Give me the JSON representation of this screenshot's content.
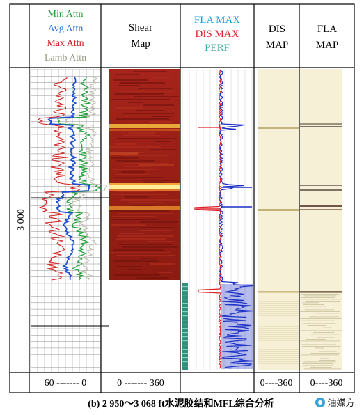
{
  "chart_data": {
    "type": "well-log composite",
    "depth_label": "3 000",
    "tracks": [
      {
        "id": "attenuation",
        "legend": [
          {
            "name": "Min Attn",
            "color": "#22a03a"
          },
          {
            "name": "Avg Attn",
            "color": "#1e6fd6"
          },
          {
            "name": "Max Attn",
            "color": "#d42020"
          },
          {
            "name": "Lamb Attn",
            "color": "#9c9c86"
          }
        ],
        "scale_label": "60 ------- 0",
        "range": [
          60,
          0
        ]
      },
      {
        "id": "shear-map",
        "title": [
          "Shear",
          "Map"
        ],
        "scale_label": "0 ------- 360",
        "range": [
          0,
          360
        ]
      },
      {
        "id": "fla-dis-max",
        "legend": [
          {
            "name": "FLA MAX",
            "color": "#1aa0d8"
          },
          {
            "name": "DIS MAX",
            "color": "#e0202a"
          },
          {
            "name": "PERF",
            "color": "#3fb0a0"
          }
        ],
        "scale_label": ""
      },
      {
        "id": "dis-map",
        "title": [
          "DIS",
          "MAP"
        ],
        "scale_label": "0----360",
        "range": [
          0,
          360
        ]
      },
      {
        "id": "fla-map",
        "title": [
          "FLA",
          "MAP"
        ],
        "scale_label": "0----360",
        "range": [
          0,
          360
        ]
      }
    ]
  },
  "caption": "(b) 2 950～3 068 ft水泥胶结和MFL综合分析",
  "watermark": "油媒方",
  "colors": {
    "min": "#22a03a",
    "avg": "#1e6fd6",
    "max": "#d42020",
    "lamb": "#9c9c86",
    "shear_bg": "#8e1a12",
    "dis_bg": "#f7f1d4",
    "fla_bg": "#f7f1d4",
    "perf": "#2e8f7a"
  }
}
